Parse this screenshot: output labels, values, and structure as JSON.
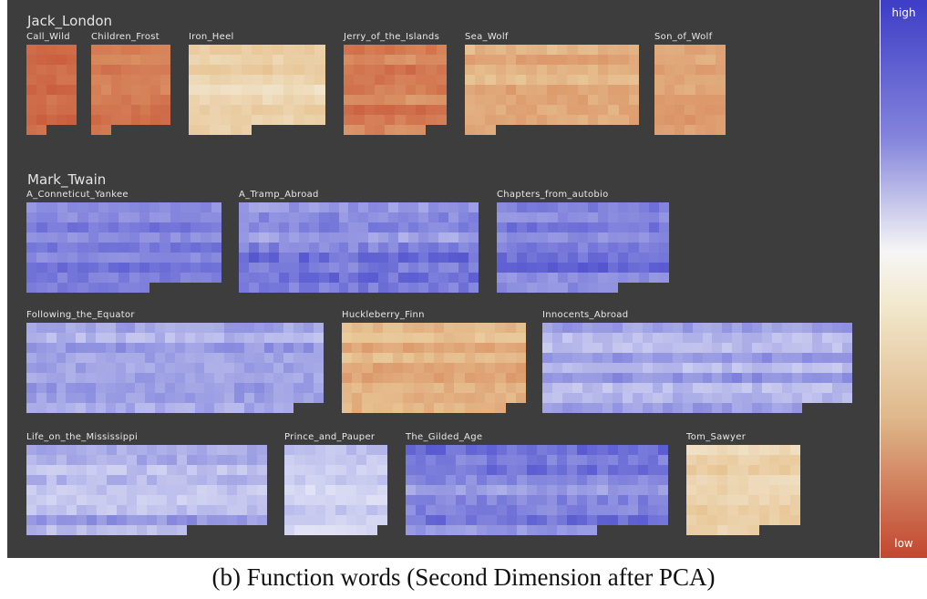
{
  "legend": {
    "high_label": "high",
    "low_label": "low"
  },
  "caption": "(b)  Function words (Second Dimension after PCA)",
  "authors": [
    {
      "name": "Jack_London",
      "books": [
        {
          "title": "Call_Wild",
          "cols": 5,
          "rows": 9,
          "last": 2,
          "palette": "warm",
          "base": 0.17,
          "spread": 0.12
        },
        {
          "title": "Children_Frost",
          "cols": 8,
          "rows": 9,
          "last": 2,
          "palette": "warm",
          "base": 0.25,
          "spread": 0.14
        },
        {
          "title": "Iron_Heel",
          "cols": 13,
          "rows": 9,
          "last": 6,
          "palette": "warm",
          "base": 0.76,
          "spread": 0.18
        },
        {
          "title": "Jerry_of_the_Islands",
          "cols": 10,
          "rows": 9,
          "last": 8,
          "palette": "warm",
          "base": 0.27,
          "spread": 0.22
        },
        {
          "title": "Sea_Wolf",
          "cols": 17,
          "rows": 9,
          "last": 3,
          "palette": "warm",
          "base": 0.55,
          "spread": 0.22
        },
        {
          "title": "Son_of_Wolf",
          "cols": 7,
          "rows": 9,
          "last": 7,
          "palette": "warm",
          "base": 0.45,
          "spread": 0.16
        }
      ]
    },
    {
      "name": "Mark_Twain",
      "books": [
        {
          "title": "A_Conneticut_Yankee",
          "cols": 19,
          "rows": 9,
          "last": 12,
          "palette": "cool",
          "base": 0.72,
          "spread": 0.2
        },
        {
          "title": "A_Tramp_Abroad",
          "cols": 24,
          "rows": 9,
          "last": 24,
          "palette": "cool",
          "base": 0.65,
          "spread": 0.3
        },
        {
          "title": "Chapters_from_autobio",
          "cols": 17,
          "rows": 9,
          "last": 12,
          "palette": "cool",
          "base": 0.72,
          "spread": 0.22
        },
        {
          "title": "Following_the_Equator",
          "cols": 30,
          "rows": 9,
          "last": 27,
          "palette": "cool",
          "base": 0.55,
          "spread": 0.28
        },
        {
          "title": "Huckleberry_Finn",
          "cols": 18,
          "rows": 9,
          "last": 16,
          "palette": "warm",
          "base": 0.55,
          "spread": 0.22
        },
        {
          "title": "Innocents_Abroad",
          "cols": 31,
          "rows": 9,
          "last": 26,
          "palette": "cool",
          "base": 0.5,
          "spread": 0.28
        },
        {
          "title": "Life_on_the_Mississippi",
          "cols": 24,
          "rows": 9,
          "last": 16,
          "palette": "cool",
          "base": 0.45,
          "spread": 0.3
        },
        {
          "title": "Prince_and_Pauper",
          "cols": 10,
          "rows": 9,
          "last": 9,
          "palette": "cool",
          "base": 0.28,
          "spread": 0.25
        },
        {
          "title": "The_Gilded_Age",
          "cols": 26,
          "rows": 9,
          "last": 19,
          "palette": "cool",
          "base": 0.68,
          "spread": 0.28
        },
        {
          "title": "Tom_Sawyer",
          "cols": 11,
          "rows": 9,
          "last": 7,
          "palette": "warm",
          "base": 0.78,
          "spread": 0.2
        }
      ]
    }
  ]
}
